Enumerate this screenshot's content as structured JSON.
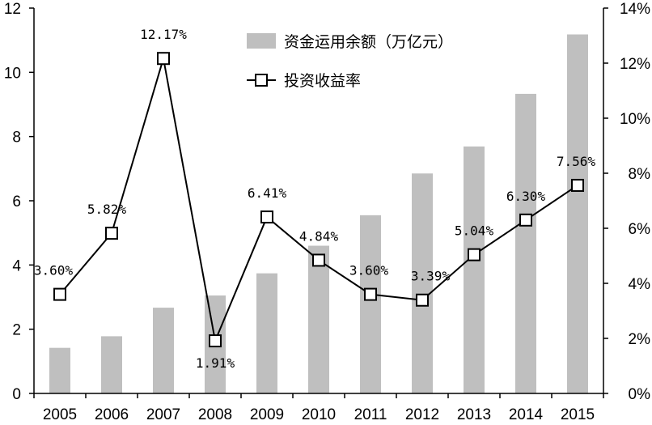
{
  "chart_data": {
    "type": "bar+line",
    "categories": [
      "2005",
      "2006",
      "2007",
      "2008",
      "2009",
      "2010",
      "2011",
      "2012",
      "2013",
      "2014",
      "2015"
    ],
    "series": [
      {
        "name": "资金运用余额（万亿元）",
        "type": "bar",
        "axis": "left",
        "color": "#bfbfbf",
        "values": [
          1.42,
          1.78,
          2.67,
          3.05,
          3.74,
          4.6,
          5.55,
          6.85,
          7.69,
          9.33,
          11.18
        ]
      },
      {
        "name": "投资收益率",
        "type": "line",
        "axis": "right",
        "color": "#000000",
        "marker": "square-open",
        "values": [
          3.6,
          5.82,
          12.17,
          1.91,
          6.41,
          4.84,
          3.6,
          3.39,
          5.04,
          6.3,
          7.56
        ],
        "labels": [
          "3.60%",
          "5.82%",
          "12.17%",
          "1.91%",
          "6.41%",
          "4.84%",
          "3.60%",
          "3.39%",
          "5.04%",
          "6.30%",
          "7.56%"
        ]
      }
    ],
    "y_left": {
      "ylim": [
        0,
        12
      ],
      "ticks": [
        "0",
        "2",
        "4",
        "6",
        "8",
        "10",
        "12"
      ]
    },
    "y_right": {
      "ylim": [
        0,
        14
      ],
      "ticks": [
        "0%",
        "2%",
        "4%",
        "6%",
        "8%",
        "10%",
        "12%",
        "14%"
      ]
    },
    "legend_position": "top-center",
    "grid": false
  }
}
